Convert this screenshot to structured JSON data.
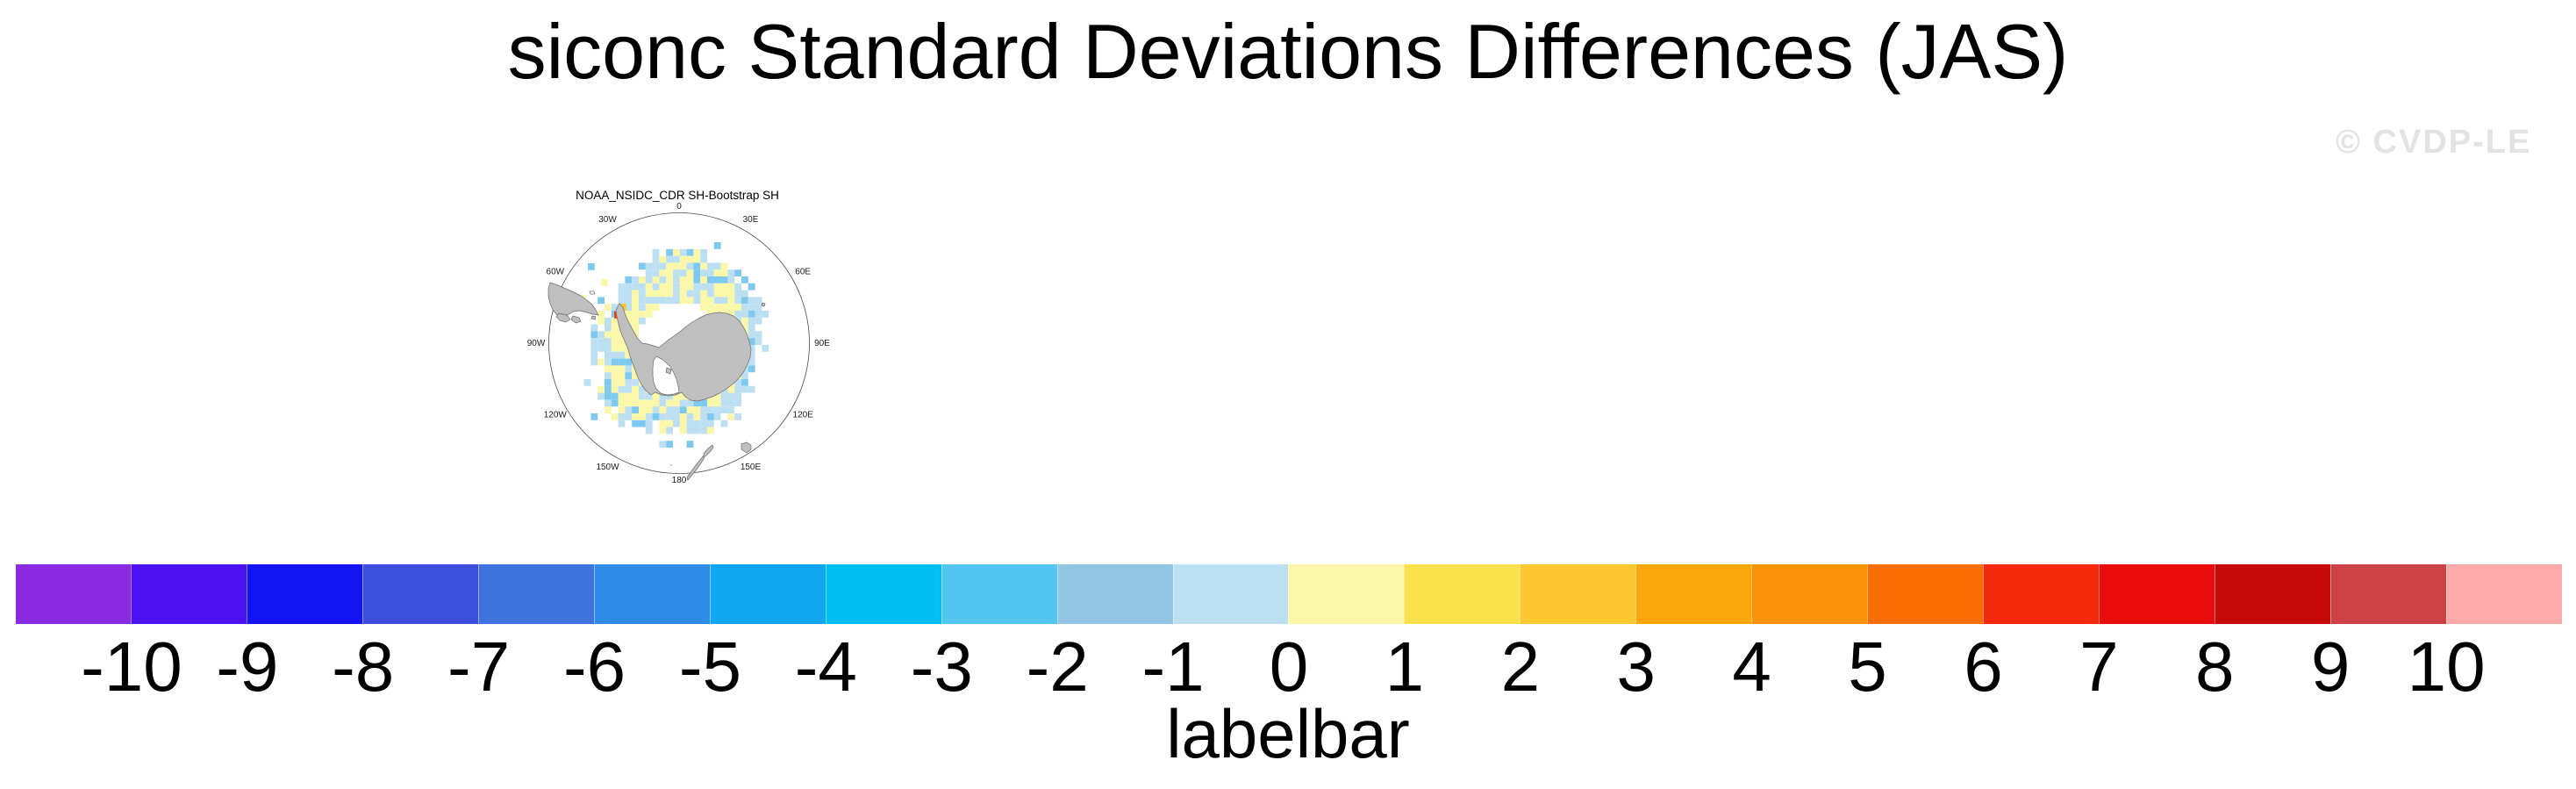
{
  "figure": {
    "title": "siconc Standard Deviations Differences (JAS)",
    "watermark": "© CVDP-LE"
  },
  "map": {
    "panel_title": "NOAA_NSIDC_CDR SH-Bootstrap SH",
    "lon_labels": [
      {
        "label": "0",
        "deg": 0
      },
      {
        "label": "30E",
        "deg": 30
      },
      {
        "label": "60E",
        "deg": 60
      },
      {
        "label": "90E",
        "deg": 90
      },
      {
        "label": "120E",
        "deg": 120
      },
      {
        "label": "150E",
        "deg": 150
      },
      {
        "label": "180",
        "deg": 180
      },
      {
        "label": "150W",
        "deg": 210
      },
      {
        "label": "120W",
        "deg": 240
      },
      {
        "label": "90W",
        "deg": 270
      },
      {
        "label": "60W",
        "deg": 300
      },
      {
        "label": "30W",
        "deg": 330
      }
    ],
    "land_color": "#BFBFBF",
    "coast_color": "#6B6B6B",
    "grid_color": "#4a4a4a",
    "cell_palette": {
      "minor_negative": "#BCE0F2",
      "minor_positive": "#FBF7A9",
      "moderate_negative": "#7EC9F0",
      "strong_negative": "#3E9BDE",
      "moderate_positive": "#FBC72F",
      "strong_positive": "#F5420D"
    }
  },
  "labelbar": {
    "caption": "labelbar",
    "tick_labels": [
      "-10",
      "-9",
      "-8",
      "-7",
      "-6",
      "-5",
      "-4",
      "-3",
      "-2",
      "-1",
      "0",
      "1",
      "2",
      "3",
      "4",
      "5",
      "6",
      "7",
      "8",
      "9",
      "10"
    ],
    "colors": [
      "#8A2BE2",
      "#4B11F1",
      "#1414F3",
      "#3C4EDA",
      "#3E72DC",
      "#2E8CE6",
      "#12A5F0",
      "#00BFF3",
      "#52C5F0",
      "#92C5E6",
      "#BCE0F2",
      "#FBF7A9",
      "#FBE14D",
      "#FCC72F",
      "#FBA70B",
      "#FB9309",
      "#F96D05",
      "#F52A0D",
      "#E90D0C",
      "#C60A0A",
      "#CD4247",
      "#FCA9A9"
    ]
  },
  "chart_data": {
    "type": "heatmap",
    "title": "siconc Standard Deviations Differences (JAS)",
    "panel": "NOAA_NSIDC_CDR SH-Bootstrap SH",
    "projection": "south polar stereographic",
    "colorbar_label": "labelbar",
    "levels": [
      -10,
      -9,
      -8,
      -7,
      -6,
      -5,
      -4,
      -3,
      -2,
      -1,
      0,
      1,
      2,
      3,
      4,
      5,
      6,
      7,
      8,
      9,
      10
    ],
    "palette": [
      "#8A2BE2",
      "#4B11F1",
      "#1414F3",
      "#3C4EDA",
      "#3E72DC",
      "#2E8CE6",
      "#12A5F0",
      "#00BFF3",
      "#52C5F0",
      "#92C5E6",
      "#BCE0F2",
      "#FBF7A9",
      "#FBE14D",
      "#FCC72F",
      "#FBA70B",
      "#FB9309",
      "#F96D05",
      "#F52A0D",
      "#E90D0C",
      "#C60A0A",
      "#CD4247",
      "#FCA9A9"
    ],
    "summary": "Ring of standard-deviation differences around Antarctica, mostly within -1 to +1 (pale blue / pale yellow cells), with scattered cells in the -3 to -1 range and one isolated strong positive cell west of the Antarctic Peninsula."
  }
}
